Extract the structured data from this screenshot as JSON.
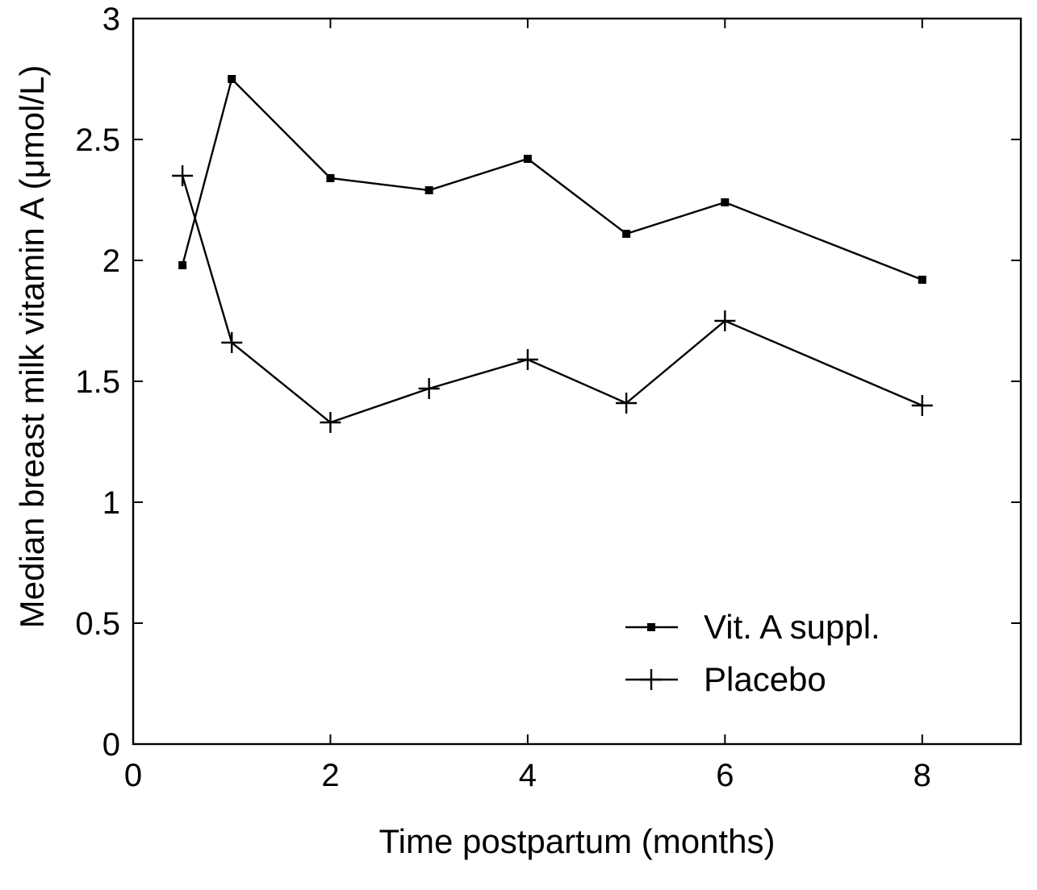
{
  "chart_data": {
    "type": "line",
    "title": "",
    "xlabel": "Time postpartum (months)",
    "ylabel": "Median breast milk vitamin A (μmol/L)",
    "xlim": [
      0,
      9
    ],
    "ylim": [
      0,
      3
    ],
    "xticks": [
      0,
      2,
      4,
      6,
      8
    ],
    "xtick_labels": [
      "0",
      "2",
      "4",
      "6",
      "8"
    ],
    "yticks": [
      0,
      0.5,
      1,
      1.5,
      2,
      2.5,
      3
    ],
    "ytick_labels": [
      "0",
      "0.5",
      "1",
      "1.5",
      "2",
      "2.5",
      "3"
    ],
    "grid": false,
    "legend_position": "bottom-right",
    "series": [
      {
        "name": "Vit. A suppl.",
        "marker": "square",
        "color": "#000000",
        "x": [
          0.5,
          1,
          2,
          3,
          4,
          5,
          6,
          8
        ],
        "y": [
          1.98,
          2.75,
          2.34,
          2.29,
          2.42,
          2.11,
          2.24,
          1.92
        ]
      },
      {
        "name": "Placebo",
        "marker": "plus",
        "color": "#000000",
        "x": [
          0.5,
          1,
          2,
          3,
          4,
          5,
          6,
          8
        ],
        "y": [
          2.35,
          1.66,
          1.33,
          1.47,
          1.59,
          1.41,
          1.75,
          1.4
        ]
      }
    ]
  }
}
